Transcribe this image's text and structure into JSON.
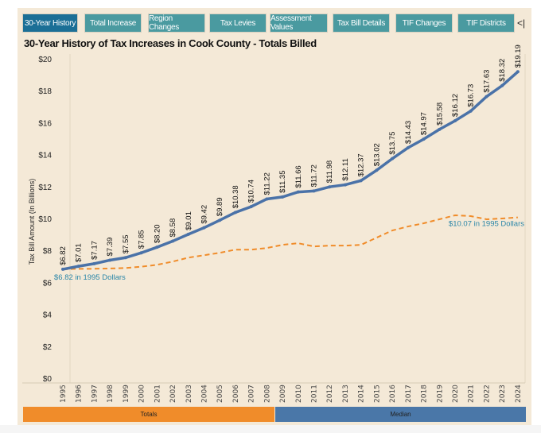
{
  "tabs": [
    "30-Year History",
    "Total Increase",
    "Region Changes",
    "Tax Levies",
    "Assessment Values",
    "Tax Bill Details",
    "TIF Changes",
    "TIF Districts"
  ],
  "collapse_label": "<|",
  "title": "30-Year History of Tax Increases in Cook County - Totals Billed",
  "legend": {
    "totals": "Totals",
    "median": "Median"
  },
  "colors": {
    "totals": "#4a72a8",
    "real_dollars": "#f08c2a",
    "active_tab": "#1b6f96",
    "tab": "#4a9aa0",
    "bar_totals": "#f08c2a",
    "bar_median": "#4a77a8"
  },
  "chart_data": {
    "type": "line",
    "ylabel": "Tax Bill Amount (In Billions)",
    "ylim": [
      0,
      20
    ],
    "yticks": [
      "$0",
      "$2",
      "$4",
      "$6",
      "$8",
      "$10",
      "$12",
      "$14",
      "$16",
      "$18",
      "$20"
    ],
    "grid": false,
    "x": [
      1995,
      1996,
      1997,
      1998,
      1999,
      2000,
      2001,
      2002,
      2003,
      2004,
      2005,
      2006,
      2007,
      2008,
      2009,
      2010,
      2011,
      2012,
      2013,
      2014,
      2015,
      2016,
      2017,
      2018,
      2019,
      2020,
      2021,
      2022,
      2023,
      2024
    ],
    "series": [
      {
        "values": [
          6.82,
          7.01,
          7.17,
          7.39,
          7.55,
          7.85,
          8.2,
          8.58,
          9.01,
          9.42,
          9.89,
          10.38,
          10.74,
          11.22,
          11.35,
          11.66,
          11.72,
          11.98,
          12.11,
          12.37,
          13.02,
          13.75,
          14.43,
          14.97,
          15.58,
          16.12,
          16.73,
          17.63,
          18.32,
          19.19
        ],
        "labels": [
          "$6.82",
          "$7.01",
          "$7.17",
          "$7.39",
          "$7.55",
          "$7.85",
          "$8.20",
          "$8.58",
          "$9.01",
          "$9.42",
          "$9.89",
          "$10.38",
          "$10.74",
          "$11.22",
          "$11.35",
          "$11.66",
          "$11.72",
          "$11.98",
          "$12.11",
          "$12.37",
          "$13.02",
          "$13.75",
          "$14.43",
          "$14.97",
          "$15.58",
          "$16.12",
          "$16.73",
          "$17.63",
          "$18.32",
          "$19.19"
        ]
      },
      {
        "values": [
          6.82,
          6.85,
          6.85,
          6.87,
          6.9,
          6.98,
          7.1,
          7.3,
          7.55,
          7.7,
          7.85,
          8.05,
          8.05,
          8.15,
          8.35,
          8.45,
          8.25,
          8.3,
          8.3,
          8.35,
          8.8,
          9.25,
          9.5,
          9.7,
          9.95,
          10.2,
          10.15,
          9.95,
          10.0,
          10.07
        ]
      }
    ],
    "annotations": [
      "$6.82 in 1995 Dollars",
      "$10.07 in 1995 Dollars"
    ]
  }
}
